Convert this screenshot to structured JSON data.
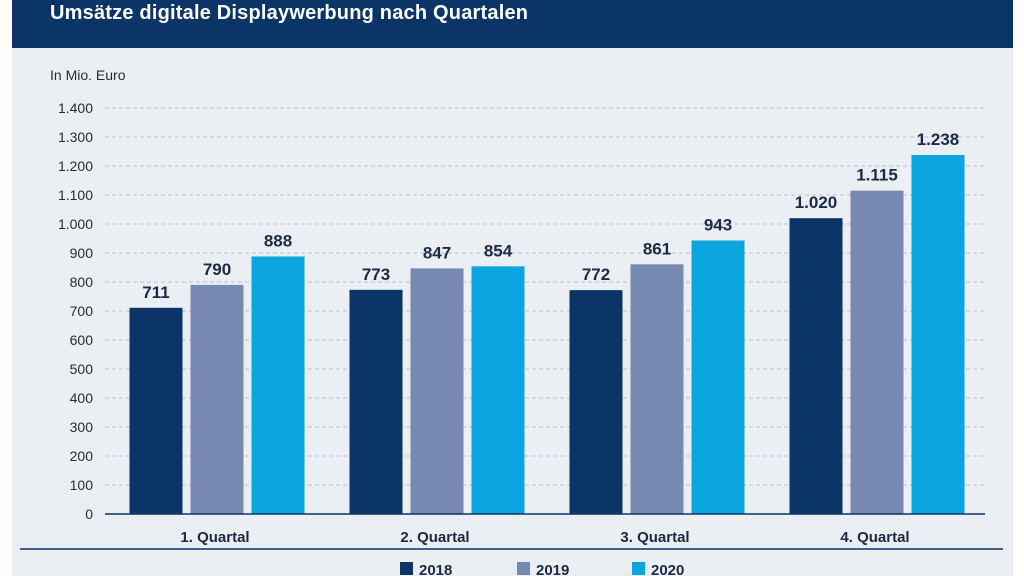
{
  "header": {
    "title": "Umsätze digitale Displaywerbung nach Quartalen"
  },
  "chart_data": {
    "type": "bar",
    "title": "Umsätze digitale Displaywerbung nach Quartalen",
    "ylabel": "In Mio. Euro",
    "xlabel": "",
    "categories": [
      "1. Quartal",
      "2. Quartal",
      "3. Quartal",
      "4. Quartal"
    ],
    "series": [
      {
        "name": "2018",
        "color": "#0a3566",
        "values": [
          711,
          773,
          772,
          1020
        ],
        "labels": [
          "711",
          "773",
          "772",
          "1.020"
        ]
      },
      {
        "name": "2019",
        "color": "#7789b0",
        "values": [
          790,
          847,
          861,
          1115
        ],
        "labels": [
          "790",
          "847",
          "861",
          "1.115"
        ]
      },
      {
        "name": "2020",
        "color": "#0aa5de",
        "values": [
          888,
          854,
          943,
          1238
        ],
        "labels": [
          "888",
          "854",
          "943",
          "1.238"
        ]
      }
    ],
    "ylim": [
      0,
      1400
    ],
    "yticks": [
      0,
      100,
      200,
      300,
      400,
      500,
      600,
      700,
      800,
      900,
      1000,
      1100,
      1200,
      1300,
      1400
    ],
    "ytick_labels": [
      "0",
      "100",
      "200",
      "300",
      "400",
      "500",
      "600",
      "700",
      "800",
      "900",
      "1.000",
      "1.100",
      "1.200",
      "1.300",
      "1.400"
    ],
    "grid": true,
    "legend": "bottom"
  }
}
